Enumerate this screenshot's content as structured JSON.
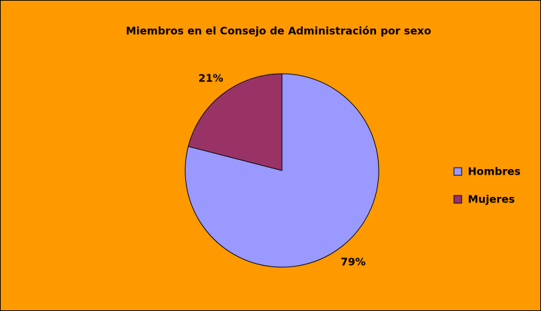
{
  "chart_data": {
    "type": "pie",
    "title": "Miembros en el Consejo de Administración por sexo",
    "categories": [
      "Hombres",
      "Mujeres"
    ],
    "values": [
      79,
      21
    ],
    "value_labels": [
      "79%",
      "21%"
    ],
    "colors": [
      "#9999ff",
      "#993366"
    ],
    "legend": "right"
  }
}
